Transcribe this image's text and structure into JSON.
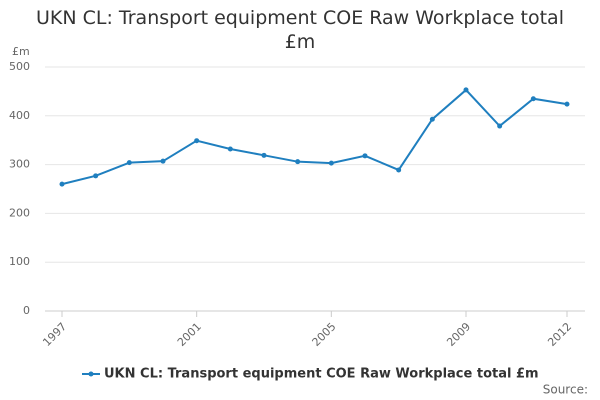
{
  "chart_data": {
    "type": "line",
    "title": "UKN CL: Transport equipment COE Raw Workplace total £m",
    "y_label": "£m",
    "source": "Source:",
    "x": [
      1997,
      1998,
      1999,
      2000,
      2001,
      2002,
      2003,
      2004,
      2005,
      2006,
      2007,
      2008,
      2009,
      2010,
      2011,
      2012
    ],
    "series": [
      {
        "name": "UKN CL: Transport equipment COE Raw Workplace total £m",
        "color": "#1f7fbf",
        "values": [
          260,
          277,
          304,
          307,
          349,
          332,
          319,
          306,
          303,
          318,
          289,
          393,
          453,
          379,
          435,
          424
        ]
      }
    ],
    "xlim": [
      1997,
      2012
    ],
    "xticks": [
      1997,
      2001,
      2005,
      2009,
      2012
    ],
    "ylim": [
      0,
      500
    ],
    "yticks": [
      0,
      100,
      200,
      300,
      400,
      500
    ],
    "grid": true,
    "legend": "bottom"
  }
}
